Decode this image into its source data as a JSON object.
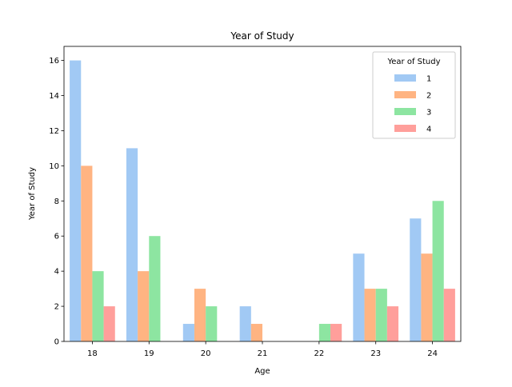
{
  "chart_data": {
    "type": "bar",
    "title": "Year of Study",
    "xlabel": "Age",
    "ylabel": "Year of Study",
    "categories": [
      "18",
      "19",
      "20",
      "21",
      "22",
      "23",
      "24"
    ],
    "series": [
      {
        "name": "1",
        "color": "#a1c9f4",
        "values": [
          16,
          11,
          1,
          2,
          0,
          5,
          7
        ]
      },
      {
        "name": "2",
        "color": "#ffb482",
        "values": [
          10,
          4,
          3,
          1,
          0,
          3,
          5
        ]
      },
      {
        "name": "3",
        "color": "#8de5a1",
        "values": [
          4,
          6,
          2,
          0,
          1,
          3,
          8
        ]
      },
      {
        "name": "4",
        "color": "#ff9f9b",
        "values": [
          2,
          0,
          0,
          0,
          1,
          2,
          3
        ]
      }
    ],
    "ylim": [
      0,
      16.8
    ],
    "yticks": [
      0,
      2,
      4,
      6,
      8,
      10,
      12,
      14,
      16
    ],
    "grid": false,
    "legend": {
      "title": "Year of Study",
      "placement": "top-right"
    }
  }
}
